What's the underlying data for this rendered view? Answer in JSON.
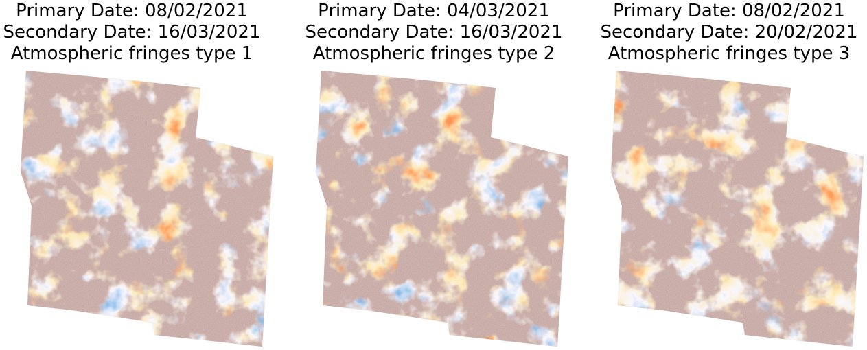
{
  "panels": [
    {
      "primary": "Primary Date: 08/02/2021",
      "secondary": "Secondary Date: 16/03/2021",
      "label": "Atmospheric fringes type 1"
    },
    {
      "primary": "Primary Date: 04/03/2021",
      "secondary": "Secondary Date: 16/03/2021",
      "label": "Atmospheric fringes type 2"
    },
    {
      "primary": "Primary Date: 08/02/2021",
      "secondary": "Secondary Date: 20/02/2021",
      "label": "Atmospheric fringes type 3"
    }
  ]
}
